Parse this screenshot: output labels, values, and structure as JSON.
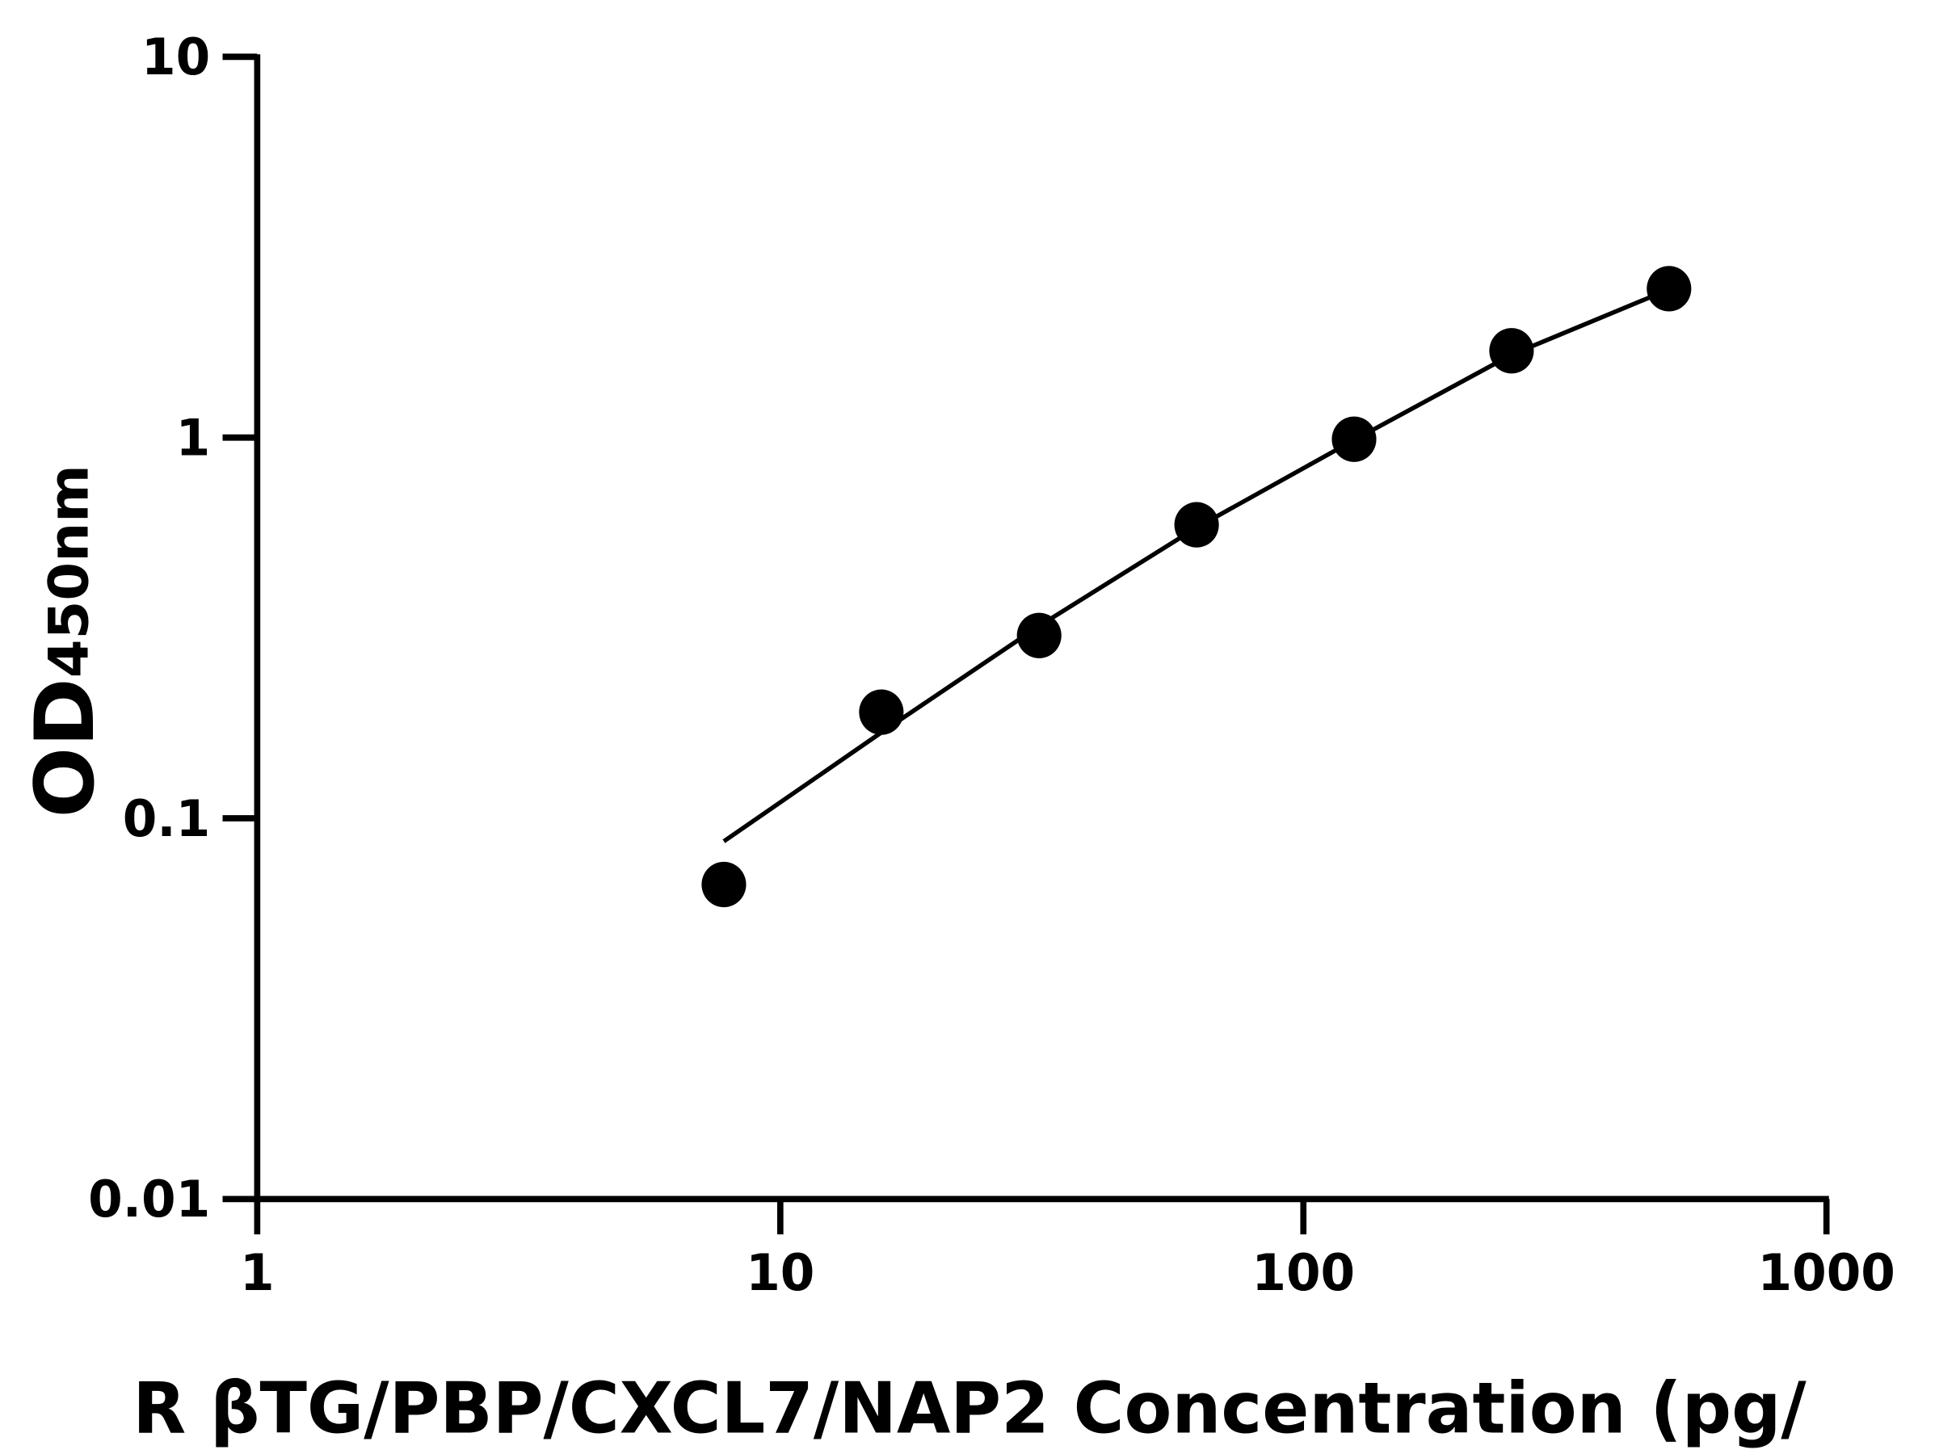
{
  "chart_data": {
    "type": "scatter",
    "xlabel": "R βTG/PBP/CXCL7/NAP2 Concentration (pg/",
    "ylabel": "OD",
    "ylabel_sub": "450nm",
    "x": [
      7.8,
      15.6,
      31.25,
      62.5,
      125,
      250,
      500
    ],
    "series": [
      {
        "color": "#000000",
        "style": "markers",
        "values": [
          0.067,
          0.19,
          0.302,
          0.59,
          0.99,
          1.69,
          2.46
        ]
      },
      {
        "color": "#000000",
        "style": "line",
        "values": [
          0.087,
          0.168,
          0.32,
          0.58,
          0.985,
          1.65,
          2.45
        ]
      }
    ],
    "xlog": true,
    "ylog": true,
    "xlim": [
      1,
      1000
    ],
    "xticks": [
      1,
      10,
      100,
      1000
    ],
    "ylim": [
      0.01,
      10
    ],
    "yticks": [
      0.01,
      0.1,
      1,
      10
    ]
  }
}
